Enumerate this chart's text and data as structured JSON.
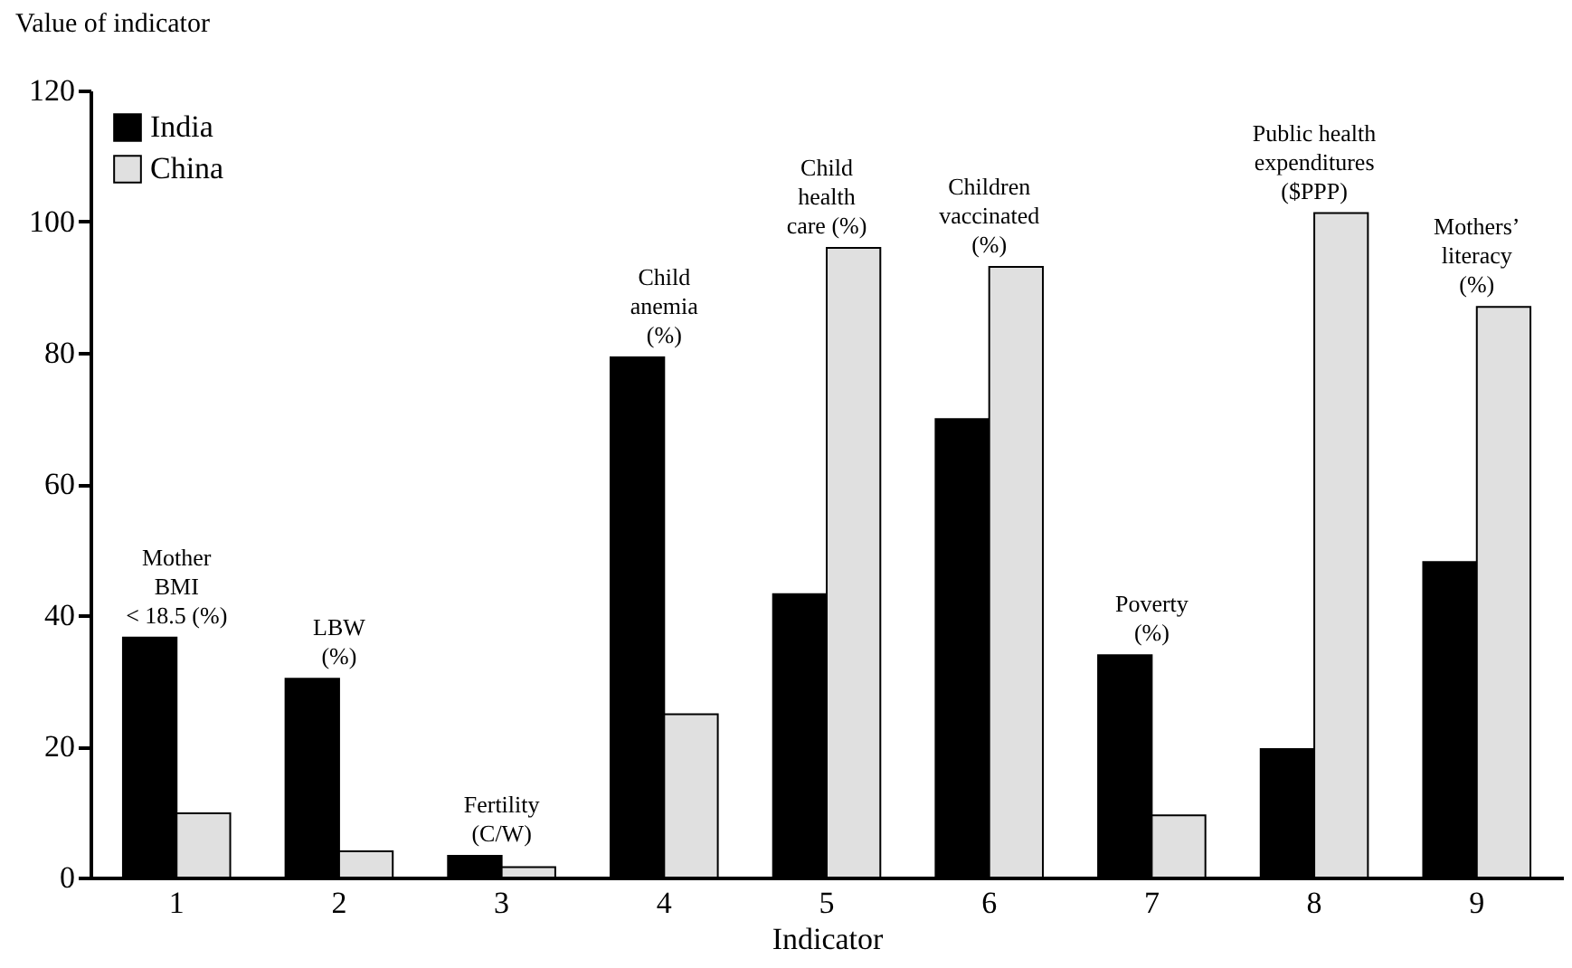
{
  "chart_data": {
    "type": "bar",
    "xlabel": "Indicator",
    "ylabel": "Value of indicator",
    "categories": [
      "1",
      "2",
      "3",
      "4",
      "5",
      "6",
      "7",
      "8",
      "9"
    ],
    "series": [
      {
        "name": "India",
        "color": "#000000",
        "values": [
          36.6,
          30.3,
          3.3,
          79.3,
          43.2,
          69.9,
          33.9,
          19.6,
          48.1
        ]
      },
      {
        "name": "China",
        "color": "#e0e0e0",
        "values": [
          9.8,
          4.0,
          1.6,
          24.9,
          96.0,
          93.1,
          9.5,
          101.3,
          87.0
        ]
      }
    ],
    "ylim": [
      0,
      120
    ],
    "yticks": [
      0,
      20,
      40,
      60,
      80,
      100,
      120
    ],
    "grid": false,
    "legend": "top left",
    "annotations": [
      "Mother\nBMI\n< 18.5 (%)",
      "LBW\n(%)",
      "Fertility\n(C/W)",
      "Child\nanemia\n(%)",
      "Child\nhealth\ncare (%)",
      "Children\nvaccinated\n(%)",
      "Poverty\n(%)",
      "Public health\nexpenditures\n($PPP)",
      "Mothers’\nliteracy\n(%)"
    ]
  }
}
